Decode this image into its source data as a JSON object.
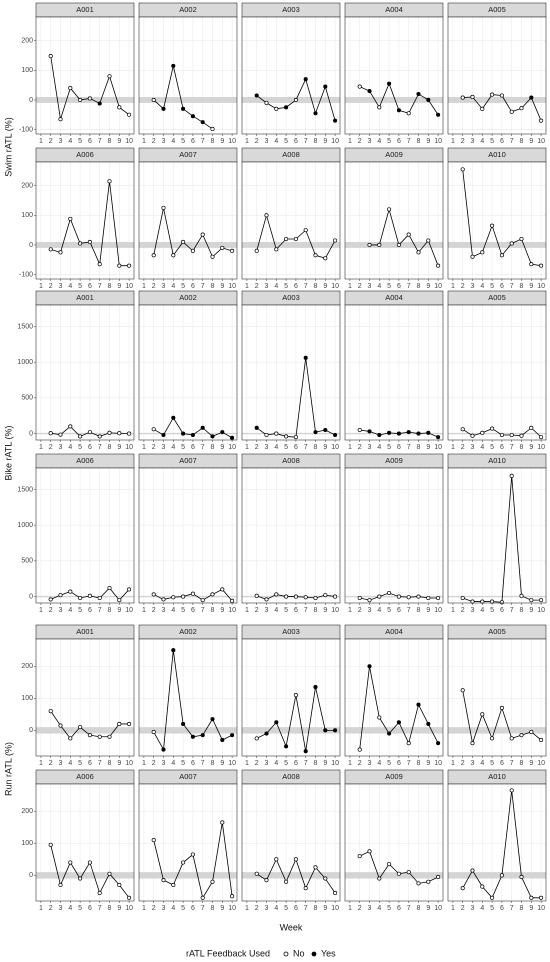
{
  "chart_data": [
    {
      "type": "line",
      "ylabel": "Swim rATL (%)",
      "ylim": [
        -115,
        280
      ],
      "yticks": [
        -100,
        0,
        100,
        200
      ],
      "xlim": [
        0.5,
        10.5
      ],
      "xticks": [
        1,
        2,
        3,
        4,
        5,
        6,
        7,
        8,
        9,
        10
      ],
      "band": [
        -10,
        10
      ],
      "panels": [
        {
          "title": "A001",
          "x": [
            2,
            3,
            4,
            5,
            6,
            7,
            8,
            9,
            10
          ],
          "values": [
            148,
            -65,
            40,
            0,
            5,
            -12,
            80,
            -25,
            -50
          ],
          "feedback_used": [
            false,
            false,
            false,
            false,
            false,
            true,
            false,
            false,
            false
          ]
        },
        {
          "title": "A002",
          "x": [
            2,
            3,
            4,
            5,
            6,
            7,
            8
          ],
          "values": [
            0,
            -30,
            115,
            -30,
            -55,
            -75,
            -98
          ],
          "feedback_used": [
            false,
            true,
            true,
            true,
            true,
            true,
            false
          ]
        },
        {
          "title": "A003",
          "x": [
            2,
            3,
            4,
            5,
            6,
            7,
            8,
            9,
            10
          ],
          "values": [
            15,
            -10,
            -30,
            -25,
            0,
            70,
            -45,
            45,
            -70
          ],
          "feedback_used": [
            true,
            false,
            false,
            true,
            false,
            true,
            true,
            true,
            true
          ]
        },
        {
          "title": "A004",
          "x": [
            2,
            3,
            4,
            5,
            6,
            7,
            8,
            9,
            10
          ],
          "values": [
            45,
            30,
            -25,
            55,
            -35,
            -45,
            20,
            0,
            -50
          ],
          "feedback_used": [
            false,
            true,
            false,
            true,
            true,
            false,
            true,
            true,
            true
          ]
        },
        {
          "title": "A005",
          "x": [
            2,
            3,
            4,
            5,
            6,
            7,
            8,
            9,
            10
          ],
          "values": [
            8,
            10,
            -30,
            18,
            15,
            -40,
            -28,
            8,
            -70
          ],
          "feedback_used": [
            false,
            false,
            false,
            false,
            false,
            false,
            false,
            true,
            false
          ]
        },
        {
          "title": "A006",
          "x": [
            2,
            3,
            4,
            5,
            6,
            7,
            8,
            9,
            10
          ],
          "values": [
            -15,
            -25,
            88,
            5,
            10,
            -65,
            215,
            -70,
            -70
          ],
          "feedback_used": [
            false,
            false,
            false,
            false,
            false,
            false,
            false,
            false,
            false
          ]
        },
        {
          "title": "A007",
          "x": [
            2,
            3,
            4,
            5,
            6,
            7,
            8,
            9,
            10
          ],
          "values": [
            -35,
            125,
            -35,
            10,
            -20,
            35,
            -40,
            -10,
            -20
          ],
          "feedback_used": [
            false,
            false,
            false,
            false,
            false,
            false,
            false,
            false,
            false
          ]
        },
        {
          "title": "A008",
          "x": [
            2,
            3,
            4,
            5,
            6,
            7,
            8,
            9,
            10
          ],
          "values": [
            -20,
            100,
            -15,
            20,
            20,
            50,
            -35,
            -45,
            15
          ],
          "feedback_used": [
            false,
            false,
            false,
            false,
            false,
            false,
            false,
            false,
            false
          ]
        },
        {
          "title": "A009",
          "x": [
            3,
            4,
            5,
            6,
            7,
            8,
            9,
            10
          ],
          "values": [
            0,
            0,
            120,
            0,
            35,
            -25,
            15,
            -70
          ],
          "feedback_used": [
            false,
            false,
            false,
            false,
            false,
            false,
            false,
            false
          ]
        },
        {
          "title": "A010",
          "x": [
            2,
            3,
            4,
            5,
            6,
            7,
            8,
            9,
            10
          ],
          "values": [
            255,
            -40,
            -25,
            65,
            -35,
            5,
            20,
            -65,
            -70
          ],
          "feedback_used": [
            false,
            false,
            false,
            false,
            false,
            false,
            false,
            false,
            false
          ]
        }
      ]
    },
    {
      "type": "line",
      "ylabel": "Bike rATL (%)",
      "ylim": [
        -90,
        1800
      ],
      "yticks": [
        0,
        500,
        1000,
        1500
      ],
      "xlim": [
        0.5,
        10.5
      ],
      "xticks": [
        1,
        2,
        3,
        4,
        5,
        6,
        7,
        8,
        9,
        10
      ],
      "band": [
        -10,
        10
      ],
      "panels": [
        {
          "title": "A001",
          "x": [
            2,
            3,
            4,
            5,
            6,
            7,
            8,
            9,
            10
          ],
          "values": [
            5,
            -15,
            100,
            -40,
            20,
            -40,
            10,
            5,
            0
          ],
          "feedback_used": [
            false,
            false,
            false,
            false,
            false,
            false,
            false,
            false,
            false
          ]
        },
        {
          "title": "A002",
          "x": [
            2,
            3,
            4,
            5,
            6,
            7,
            8,
            9,
            10
          ],
          "values": [
            60,
            -20,
            220,
            0,
            -20,
            80,
            -40,
            20,
            -60
          ],
          "feedback_used": [
            false,
            true,
            true,
            true,
            true,
            true,
            true,
            true,
            true
          ]
        },
        {
          "title": "A003",
          "x": [
            2,
            3,
            4,
            5,
            6,
            7,
            8,
            9,
            10
          ],
          "values": [
            80,
            -20,
            0,
            -40,
            -50,
            1060,
            20,
            50,
            -20
          ],
          "feedback_used": [
            true,
            false,
            false,
            false,
            false,
            true,
            true,
            true,
            true
          ]
        },
        {
          "title": "A004",
          "x": [
            2,
            3,
            4,
            5,
            6,
            7,
            8,
            9,
            10
          ],
          "values": [
            50,
            30,
            -20,
            10,
            0,
            20,
            0,
            10,
            -50
          ],
          "feedback_used": [
            false,
            true,
            true,
            true,
            true,
            true,
            true,
            true,
            true
          ]
        },
        {
          "title": "A005",
          "x": [
            2,
            3,
            4,
            5,
            6,
            7,
            8,
            9,
            10
          ],
          "values": [
            60,
            -30,
            10,
            70,
            -20,
            -20,
            -30,
            80,
            -50
          ],
          "feedback_used": [
            false,
            false,
            false,
            false,
            false,
            false,
            false,
            false,
            false
          ]
        },
        {
          "title": "A006",
          "x": [
            2,
            3,
            4,
            5,
            6,
            7,
            8,
            9,
            10
          ],
          "values": [
            -40,
            20,
            70,
            -20,
            10,
            -20,
            120,
            -50,
            100
          ],
          "feedback_used": [
            false,
            false,
            false,
            false,
            false,
            false,
            false,
            false,
            false
          ]
        },
        {
          "title": "A007",
          "x": [
            2,
            3,
            4,
            5,
            6,
            7,
            8,
            9,
            10
          ],
          "values": [
            30,
            -40,
            -10,
            0,
            40,
            -50,
            30,
            100,
            -60
          ],
          "feedback_used": [
            false,
            false,
            false,
            false,
            false,
            false,
            false,
            false,
            false
          ]
        },
        {
          "title": "A008",
          "x": [
            2,
            3,
            4,
            5,
            6,
            7,
            8,
            9,
            10
          ],
          "values": [
            10,
            -40,
            30,
            0,
            0,
            -10,
            -20,
            20,
            0
          ],
          "feedback_used": [
            false,
            false,
            false,
            false,
            false,
            false,
            false,
            false,
            false
          ]
        },
        {
          "title": "A009",
          "x": [
            2,
            3,
            4,
            5,
            6,
            7,
            8,
            9,
            10
          ],
          "values": [
            -20,
            -50,
            0,
            50,
            0,
            -10,
            0,
            -20,
            -20
          ],
          "feedback_used": [
            false,
            false,
            false,
            false,
            false,
            false,
            false,
            false,
            false
          ]
        },
        {
          "title": "A010",
          "x": [
            2,
            3,
            4,
            5,
            6,
            7,
            8,
            9,
            10
          ],
          "values": [
            -20,
            -70,
            -70,
            -70,
            -80,
            1690,
            10,
            -50,
            -50
          ],
          "feedback_used": [
            false,
            false,
            false,
            false,
            false,
            false,
            false,
            false,
            false
          ]
        }
      ]
    },
    {
      "type": "line",
      "ylabel": "Run rATL (%)",
      "ylim": [
        -80,
        285
      ],
      "yticks": [
        0,
        100,
        200
      ],
      "xlim": [
        0.5,
        10.5
      ],
      "xticks": [
        1,
        2,
        3,
        4,
        5,
        6,
        7,
        8,
        9,
        10
      ],
      "band": [
        -10,
        10
      ],
      "panels": [
        {
          "title": "A001",
          "x": [
            2,
            3,
            4,
            5,
            6,
            7,
            8,
            9,
            10
          ],
          "values": [
            60,
            15,
            -25,
            10,
            -15,
            -20,
            -20,
            20,
            20
          ],
          "feedback_used": [
            false,
            false,
            false,
            false,
            false,
            false,
            false,
            false,
            false
          ]
        },
        {
          "title": "A002",
          "x": [
            2,
            3,
            4,
            5,
            6,
            7,
            8,
            9,
            10
          ],
          "values": [
            -5,
            -60,
            250,
            20,
            -20,
            -15,
            35,
            -30,
            -15
          ],
          "feedback_used": [
            false,
            true,
            true,
            true,
            true,
            true,
            true,
            true,
            true
          ]
        },
        {
          "title": "A003",
          "x": [
            2,
            3,
            4,
            5,
            6,
            7,
            8,
            9,
            10
          ],
          "values": [
            -25,
            -10,
            25,
            -50,
            110,
            -65,
            135,
            0,
            0
          ],
          "feedback_used": [
            false,
            true,
            true,
            true,
            false,
            true,
            true,
            true,
            true
          ]
        },
        {
          "title": "A004",
          "x": [
            2,
            3,
            4,
            5,
            6,
            7,
            8,
            9,
            10
          ],
          "values": [
            -60,
            200,
            40,
            -10,
            25,
            -40,
            80,
            20,
            -40
          ],
          "feedback_used": [
            false,
            true,
            false,
            true,
            true,
            false,
            true,
            true,
            true
          ]
        },
        {
          "title": "A005",
          "x": [
            2,
            3,
            4,
            5,
            6,
            7,
            8,
            9,
            10
          ],
          "values": [
            125,
            -40,
            50,
            -25,
            70,
            -25,
            -15,
            -5,
            -30
          ],
          "feedback_used": [
            false,
            false,
            false,
            false,
            false,
            false,
            false,
            false,
            false
          ]
        },
        {
          "title": "A006",
          "x": [
            2,
            3,
            4,
            5,
            6,
            7,
            8,
            9,
            10
          ],
          "values": [
            95,
            -30,
            40,
            -10,
            40,
            -55,
            5,
            -30,
            -70
          ],
          "feedback_used": [
            false,
            false,
            false,
            false,
            false,
            false,
            false,
            false,
            false
          ]
        },
        {
          "title": "A007",
          "x": [
            2,
            3,
            4,
            5,
            6,
            7,
            8,
            9,
            10
          ],
          "values": [
            110,
            -15,
            -30,
            40,
            65,
            -70,
            -20,
            165,
            -65
          ],
          "feedback_used": [
            false,
            false,
            false,
            false,
            false,
            false,
            false,
            false,
            false
          ]
        },
        {
          "title": "A008",
          "x": [
            2,
            3,
            4,
            5,
            6,
            7,
            8,
            9,
            10
          ],
          "values": [
            5,
            -15,
            50,
            -20,
            50,
            -40,
            25,
            -10,
            -55
          ],
          "feedback_used": [
            false,
            false,
            false,
            false,
            false,
            false,
            false,
            false,
            false
          ]
        },
        {
          "title": "A009",
          "x": [
            2,
            3,
            4,
            5,
            6,
            7,
            8,
            9,
            10
          ],
          "values": [
            60,
            75,
            -10,
            35,
            5,
            10,
            -25,
            -20,
            -5
          ],
          "feedback_used": [
            false,
            false,
            false,
            false,
            false,
            false,
            false,
            false,
            false
          ]
        },
        {
          "title": "A010",
          "x": [
            2,
            3,
            4,
            5,
            6,
            7,
            8,
            9,
            10
          ],
          "values": [
            -40,
            15,
            -35,
            -70,
            0,
            265,
            -5,
            -70,
            -70
          ],
          "feedback_used": [
            false,
            false,
            false,
            false,
            false,
            false,
            false,
            false,
            false
          ]
        }
      ]
    }
  ],
  "xlabel": "Week",
  "legend": {
    "title": "rATL Feedback Used",
    "entries": [
      "No",
      "Yes"
    ]
  }
}
